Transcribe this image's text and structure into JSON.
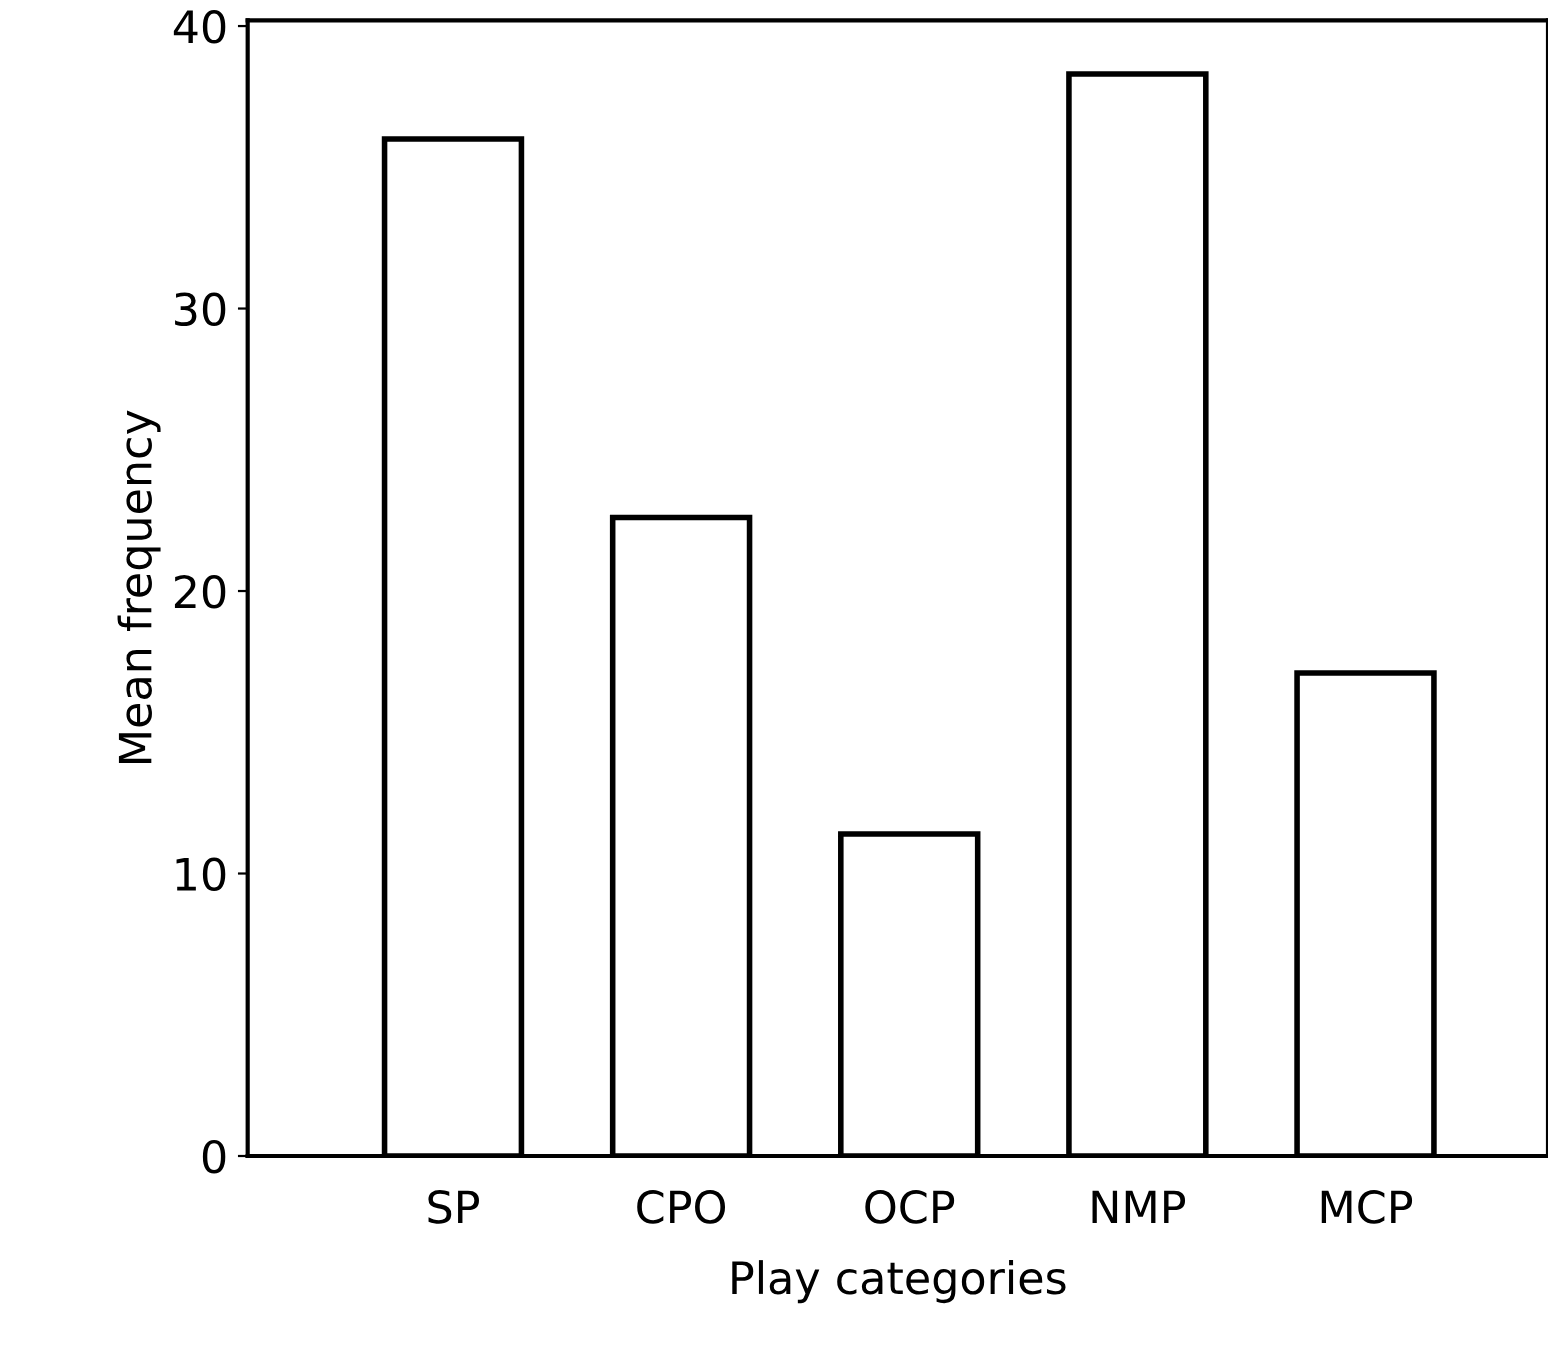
{
  "chart_data": {
    "type": "bar",
    "xlabel": "Play categories",
    "ylabel": "Mean frequency",
    "categories": [
      "SP",
      "CPO",
      "OCP",
      "NMP",
      "MCP"
    ],
    "values": [
      36.0,
      22.6,
      11.4,
      38.3,
      17.1
    ],
    "color": "#ffffff",
    "ylim": [
      0,
      40.2
    ],
    "yticks": [
      0,
      10,
      20,
      30,
      40
    ],
    "grid": false,
    "legend": false
  }
}
